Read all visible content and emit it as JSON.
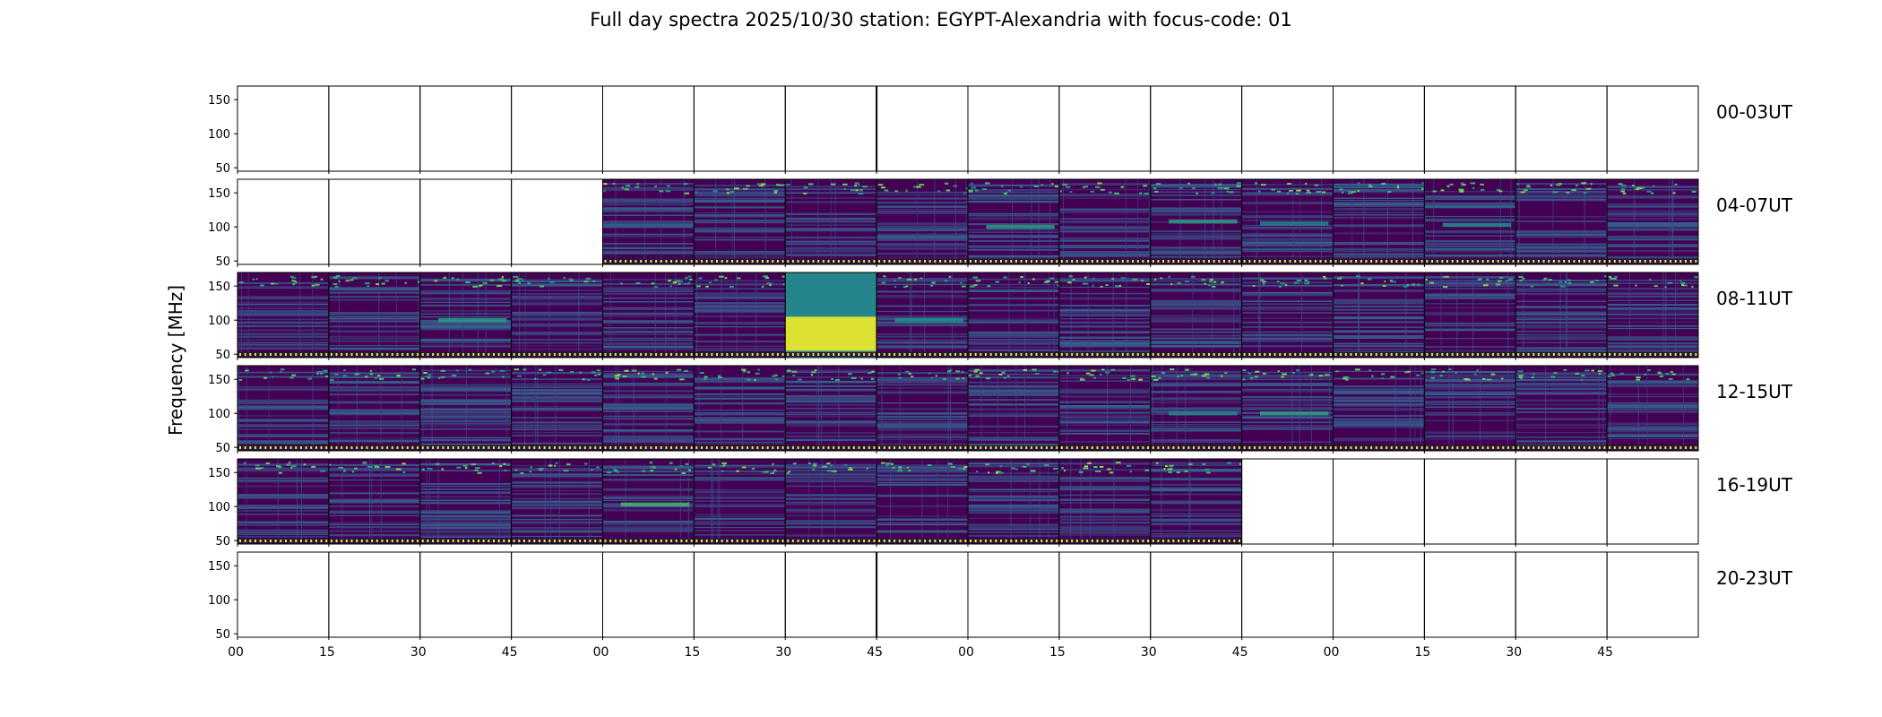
{
  "figure": {
    "title": "Full day spectra 2025/10/30 station: EGYPT-Alexandria with focus-code: 01"
  },
  "colors": {
    "background": "#ffffff",
    "axis": "#000000",
    "viridis_low": "#440154",
    "viridis_mid": "#21918c",
    "viridis_high": "#fde725",
    "marker_band": "#fde725"
  },
  "chart_data": {
    "type": "heatmap",
    "colormap": "viridis",
    "title": "Full day spectra 2025/10/30 station: EGYPT-Alexandria with focus-code: 01",
    "xlabel": "",
    "ylabel": "Frequency [MHz]",
    "ylim": [
      45,
      170
    ],
    "y_ticks": [
      50,
      100,
      150
    ],
    "x_tick_labels": [
      "00",
      "15",
      "30",
      "45",
      "00",
      "15",
      "30",
      "45",
      "00",
      "15",
      "30",
      "45",
      "00",
      "15",
      "30",
      "45"
    ],
    "panels_per_row": 16,
    "panel_minutes": 15,
    "rows": [
      {
        "label": "00-03UT",
        "panels": [
          0,
          0,
          0,
          0,
          0,
          0,
          0,
          0,
          0,
          0,
          0,
          0,
          0,
          0,
          0,
          0
        ]
      },
      {
        "label": "04-07UT",
        "panels": [
          0,
          0,
          0,
          0,
          1,
          1,
          1,
          1,
          1,
          1,
          1,
          1,
          1,
          1,
          1,
          1
        ]
      },
      {
        "label": "08-11UT",
        "panels": [
          1,
          1,
          1,
          1,
          1,
          1,
          1,
          1,
          1,
          1,
          1,
          1,
          1,
          1,
          1,
          1
        ]
      },
      {
        "label": "12-15UT",
        "panels": [
          1,
          1,
          1,
          1,
          1,
          1,
          1,
          1,
          1,
          1,
          1,
          1,
          1,
          1,
          1,
          1
        ]
      },
      {
        "label": "16-19UT",
        "panels": [
          1,
          1,
          1,
          1,
          1,
          1,
          1,
          1,
          1,
          1,
          1,
          0,
          0,
          0,
          0,
          0
        ]
      },
      {
        "label": "20-23UT",
        "panels": [
          0,
          0,
          0,
          0,
          0,
          0,
          0,
          0,
          0,
          0,
          0,
          0,
          0,
          0,
          0,
          0
        ]
      }
    ],
    "emission_bands": [
      {
        "row": 1,
        "panel": 8,
        "freq": 100,
        "strength": 0.55
      },
      {
        "row": 1,
        "panel": 10,
        "freq": 108,
        "strength": 0.55
      },
      {
        "row": 1,
        "panel": 11,
        "freq": 105,
        "strength": 0.45
      },
      {
        "row": 1,
        "panel": 13,
        "freq": 103,
        "strength": 0.5
      },
      {
        "row": 2,
        "panel": 2,
        "freq": 100,
        "strength": 0.55
      },
      {
        "row": 2,
        "panel": 6,
        "freq": 100,
        "strength": 0.95
      },
      {
        "row": 2,
        "panel": 7,
        "freq": 100,
        "strength": 0.5
      },
      {
        "row": 3,
        "panel": 10,
        "freq": 100,
        "strength": 0.45
      },
      {
        "row": 3,
        "panel": 11,
        "freq": 100,
        "strength": 0.55
      },
      {
        "row": 4,
        "panel": 4,
        "freq": 103,
        "strength": 0.65
      }
    ]
  }
}
